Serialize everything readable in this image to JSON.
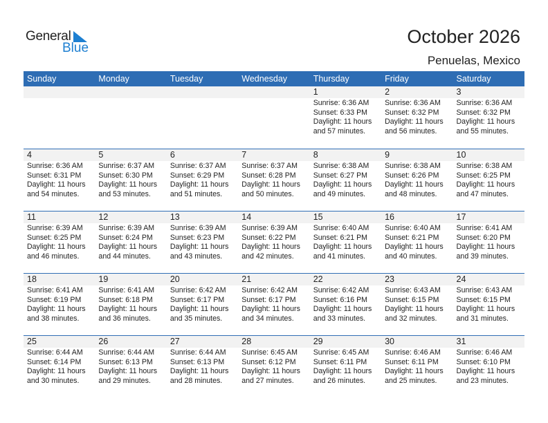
{
  "logo": {
    "line1": "General",
    "line2": "Blue",
    "accent": "#1d7fd1"
  },
  "title": "October 2026",
  "location": "Penuelas, Mexico",
  "colors": {
    "header": "#2e6db4",
    "band": "#f2f2f2"
  },
  "weekdays": [
    "Sunday",
    "Monday",
    "Tuesday",
    "Wednesday",
    "Thursday",
    "Friday",
    "Saturday"
  ],
  "weeks": [
    [
      null,
      null,
      null,
      null,
      {
        "day": "1",
        "sunrise": "Sunrise: 6:36 AM",
        "sunset": "Sunset: 6:33 PM",
        "daylight": "Daylight: 11 hours",
        "minutes": "and 57 minutes."
      },
      {
        "day": "2",
        "sunrise": "Sunrise: 6:36 AM",
        "sunset": "Sunset: 6:32 PM",
        "daylight": "Daylight: 11 hours",
        "minutes": "and 56 minutes."
      },
      {
        "day": "3",
        "sunrise": "Sunrise: 6:36 AM",
        "sunset": "Sunset: 6:32 PM",
        "daylight": "Daylight: 11 hours",
        "minutes": "and 55 minutes."
      }
    ],
    [
      {
        "day": "4",
        "sunrise": "Sunrise: 6:36 AM",
        "sunset": "Sunset: 6:31 PM",
        "daylight": "Daylight: 11 hours",
        "minutes": "and 54 minutes."
      },
      {
        "day": "5",
        "sunrise": "Sunrise: 6:37 AM",
        "sunset": "Sunset: 6:30 PM",
        "daylight": "Daylight: 11 hours",
        "minutes": "and 53 minutes."
      },
      {
        "day": "6",
        "sunrise": "Sunrise: 6:37 AM",
        "sunset": "Sunset: 6:29 PM",
        "daylight": "Daylight: 11 hours",
        "minutes": "and 51 minutes."
      },
      {
        "day": "7",
        "sunrise": "Sunrise: 6:37 AM",
        "sunset": "Sunset: 6:28 PM",
        "daylight": "Daylight: 11 hours",
        "minutes": "and 50 minutes."
      },
      {
        "day": "8",
        "sunrise": "Sunrise: 6:38 AM",
        "sunset": "Sunset: 6:27 PM",
        "daylight": "Daylight: 11 hours",
        "minutes": "and 49 minutes."
      },
      {
        "day": "9",
        "sunrise": "Sunrise: 6:38 AM",
        "sunset": "Sunset: 6:26 PM",
        "daylight": "Daylight: 11 hours",
        "minutes": "and 48 minutes."
      },
      {
        "day": "10",
        "sunrise": "Sunrise: 6:38 AM",
        "sunset": "Sunset: 6:25 PM",
        "daylight": "Daylight: 11 hours",
        "minutes": "and 47 minutes."
      }
    ],
    [
      {
        "day": "11",
        "sunrise": "Sunrise: 6:39 AM",
        "sunset": "Sunset: 6:25 PM",
        "daylight": "Daylight: 11 hours",
        "minutes": "and 46 minutes."
      },
      {
        "day": "12",
        "sunrise": "Sunrise: 6:39 AM",
        "sunset": "Sunset: 6:24 PM",
        "daylight": "Daylight: 11 hours",
        "minutes": "and 44 minutes."
      },
      {
        "day": "13",
        "sunrise": "Sunrise: 6:39 AM",
        "sunset": "Sunset: 6:23 PM",
        "daylight": "Daylight: 11 hours",
        "minutes": "and 43 minutes."
      },
      {
        "day": "14",
        "sunrise": "Sunrise: 6:39 AM",
        "sunset": "Sunset: 6:22 PM",
        "daylight": "Daylight: 11 hours",
        "minutes": "and 42 minutes."
      },
      {
        "day": "15",
        "sunrise": "Sunrise: 6:40 AM",
        "sunset": "Sunset: 6:21 PM",
        "daylight": "Daylight: 11 hours",
        "minutes": "and 41 minutes."
      },
      {
        "day": "16",
        "sunrise": "Sunrise: 6:40 AM",
        "sunset": "Sunset: 6:21 PM",
        "daylight": "Daylight: 11 hours",
        "minutes": "and 40 minutes."
      },
      {
        "day": "17",
        "sunrise": "Sunrise: 6:41 AM",
        "sunset": "Sunset: 6:20 PM",
        "daylight": "Daylight: 11 hours",
        "minutes": "and 39 minutes."
      }
    ],
    [
      {
        "day": "18",
        "sunrise": "Sunrise: 6:41 AM",
        "sunset": "Sunset: 6:19 PM",
        "daylight": "Daylight: 11 hours",
        "minutes": "and 38 minutes."
      },
      {
        "day": "19",
        "sunrise": "Sunrise: 6:41 AM",
        "sunset": "Sunset: 6:18 PM",
        "daylight": "Daylight: 11 hours",
        "minutes": "and 36 minutes."
      },
      {
        "day": "20",
        "sunrise": "Sunrise: 6:42 AM",
        "sunset": "Sunset: 6:17 PM",
        "daylight": "Daylight: 11 hours",
        "minutes": "and 35 minutes."
      },
      {
        "day": "21",
        "sunrise": "Sunrise: 6:42 AM",
        "sunset": "Sunset: 6:17 PM",
        "daylight": "Daylight: 11 hours",
        "minutes": "and 34 minutes."
      },
      {
        "day": "22",
        "sunrise": "Sunrise: 6:42 AM",
        "sunset": "Sunset: 6:16 PM",
        "daylight": "Daylight: 11 hours",
        "minutes": "and 33 minutes."
      },
      {
        "day": "23",
        "sunrise": "Sunrise: 6:43 AM",
        "sunset": "Sunset: 6:15 PM",
        "daylight": "Daylight: 11 hours",
        "minutes": "and 32 minutes."
      },
      {
        "day": "24",
        "sunrise": "Sunrise: 6:43 AM",
        "sunset": "Sunset: 6:15 PM",
        "daylight": "Daylight: 11 hours",
        "minutes": "and 31 minutes."
      }
    ],
    [
      {
        "day": "25",
        "sunrise": "Sunrise: 6:44 AM",
        "sunset": "Sunset: 6:14 PM",
        "daylight": "Daylight: 11 hours",
        "minutes": "and 30 minutes."
      },
      {
        "day": "26",
        "sunrise": "Sunrise: 6:44 AM",
        "sunset": "Sunset: 6:13 PM",
        "daylight": "Daylight: 11 hours",
        "minutes": "and 29 minutes."
      },
      {
        "day": "27",
        "sunrise": "Sunrise: 6:44 AM",
        "sunset": "Sunset: 6:13 PM",
        "daylight": "Daylight: 11 hours",
        "minutes": "and 28 minutes."
      },
      {
        "day": "28",
        "sunrise": "Sunrise: 6:45 AM",
        "sunset": "Sunset: 6:12 PM",
        "daylight": "Daylight: 11 hours",
        "minutes": "and 27 minutes."
      },
      {
        "day": "29",
        "sunrise": "Sunrise: 6:45 AM",
        "sunset": "Sunset: 6:11 PM",
        "daylight": "Daylight: 11 hours",
        "minutes": "and 26 minutes."
      },
      {
        "day": "30",
        "sunrise": "Sunrise: 6:46 AM",
        "sunset": "Sunset: 6:11 PM",
        "daylight": "Daylight: 11 hours",
        "minutes": "and 25 minutes."
      },
      {
        "day": "31",
        "sunrise": "Sunrise: 6:46 AM",
        "sunset": "Sunset: 6:10 PM",
        "daylight": "Daylight: 11 hours",
        "minutes": "and 23 minutes."
      }
    ]
  ]
}
